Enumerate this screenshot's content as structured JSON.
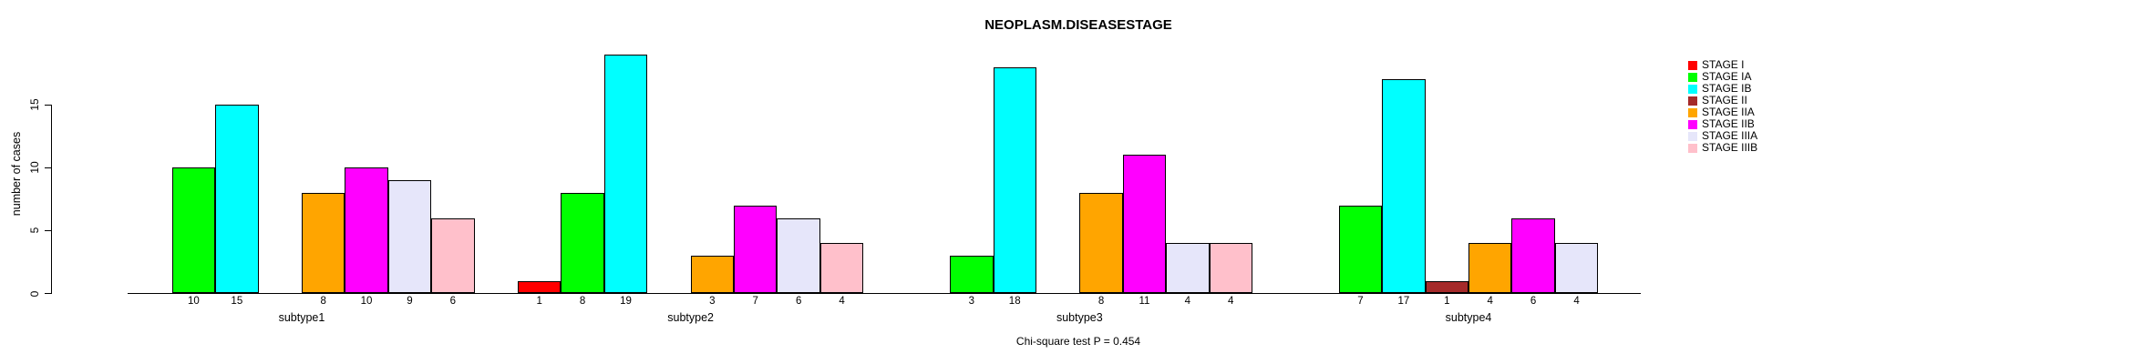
{
  "chart_data": {
    "type": "bar",
    "title": "NEOPLASM.DISEASESTAGE",
    "ylabel": "number of cases",
    "xlabel": "",
    "categories": [
      "subtype1",
      "subtype2",
      "subtype3",
      "subtype4"
    ],
    "series": [
      {
        "name": "STAGE I",
        "color": "#FF0000",
        "values": [
          0,
          1,
          0,
          0
        ]
      },
      {
        "name": "STAGE IA",
        "color": "#00FF00",
        "values": [
          10,
          8,
          3,
          7
        ]
      },
      {
        "name": "STAGE IB",
        "color": "#00FFFF",
        "values": [
          15,
          19,
          18,
          17
        ]
      },
      {
        "name": "STAGE II",
        "color": "#A52A2A",
        "values": [
          0,
          0,
          0,
          1
        ]
      },
      {
        "name": "STAGE IIA",
        "color": "#FFA500",
        "values": [
          8,
          3,
          8,
          4
        ]
      },
      {
        "name": "STAGE IIB",
        "color": "#FF00FF",
        "values": [
          10,
          7,
          11,
          6
        ]
      },
      {
        "name": "STAGE IIIA",
        "color": "#E6E6FA",
        "values": [
          9,
          6,
          4,
          4
        ]
      },
      {
        "name": "STAGE IIIB",
        "color": "#FFC0CB",
        "values": [
          6,
          4,
          4,
          0
        ]
      }
    ],
    "ylim": [
      0,
      19
    ],
    "y_ticks": [
      0,
      5,
      10,
      15
    ],
    "grid": false,
    "legend_position": "right",
    "bar_value_labels": "non-zero values shown below axis under each bar",
    "annotation": "Chi-square test P = 0.454"
  }
}
